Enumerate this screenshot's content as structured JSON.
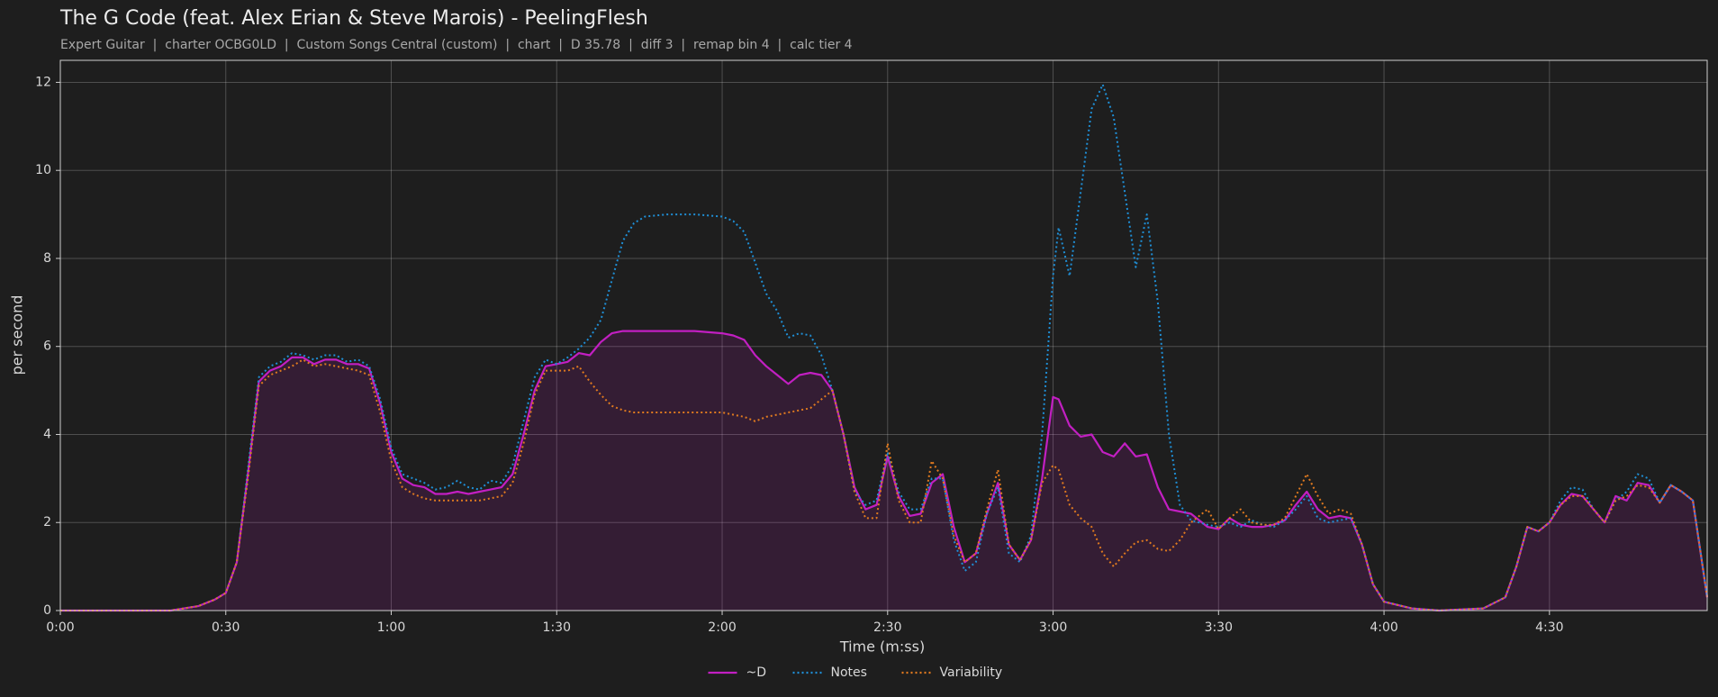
{
  "chart_data": {
    "type": "line",
    "title": "The G Code (feat. Alex Erian & Steve Marois) - PeelingFlesh",
    "subtitle": "Expert Guitar  |  charter OCBG0LD  |  Custom Songs Central (custom)  |  chart  |  D 35.78  |  diff 3  |  remap bin 4  |  calc tier 4",
    "xlabel": "Time (m:ss)",
    "ylabel": "per second",
    "xlim": [
      0,
      298.6
    ],
    "ylim": [
      0,
      12.5
    ],
    "xticks": [
      {
        "value": 0,
        "label": "0:00"
      },
      {
        "value": 30,
        "label": "0:30"
      },
      {
        "value": 60,
        "label": "1:00"
      },
      {
        "value": 90,
        "label": "1:30"
      },
      {
        "value": 120,
        "label": "2:00"
      },
      {
        "value": 150,
        "label": "2:30"
      },
      {
        "value": 180,
        "label": "3:00"
      },
      {
        "value": 210,
        "label": "3:30"
      },
      {
        "value": 240,
        "label": "4:00"
      },
      {
        "value": 270,
        "label": "4:30"
      }
    ],
    "yticks": [
      0,
      2,
      4,
      6,
      8,
      10,
      12
    ],
    "grid": true,
    "legend": "bottom",
    "x": [
      0,
      20,
      25,
      28,
      30,
      32,
      34,
      36,
      38,
      40,
      42,
      44,
      46,
      48,
      50,
      52,
      54,
      56,
      58,
      60,
      62,
      64,
      66,
      68,
      70,
      72,
      74,
      76,
      78,
      80,
      82,
      84,
      86,
      88,
      90,
      92,
      94,
      96,
      98,
      100,
      102,
      104,
      106,
      110,
      115,
      120,
      122,
      124,
      126,
      128,
      130,
      132,
      134,
      136,
      138,
      140,
      142,
      144,
      146,
      148,
      150,
      152,
      154,
      156,
      158,
      160,
      162,
      164,
      166,
      168,
      170,
      172,
      174,
      176,
      178,
      180,
      181,
      183,
      185,
      187,
      189,
      191,
      193,
      195,
      197,
      199,
      201,
      203,
      205,
      208,
      210,
      212,
      214,
      216,
      218,
      220,
      222,
      224,
      226,
      228,
      230,
      232,
      234,
      236,
      238,
      240,
      245,
      250,
      258,
      262,
      264,
      266,
      268,
      270,
      272,
      274,
      276,
      278,
      280,
      282,
      284,
      286,
      288,
      290,
      292,
      294,
      296,
      298.6
    ],
    "series": [
      {
        "name": "~D",
        "color": "#c21fc2",
        "style": "solid",
        "area": true,
        "values": [
          0,
          0,
          0.1,
          0.25,
          0.4,
          1.1,
          3.1,
          5.2,
          5.45,
          5.55,
          5.75,
          5.75,
          5.6,
          5.7,
          5.7,
          5.6,
          5.6,
          5.5,
          4.7,
          3.6,
          3.0,
          2.85,
          2.8,
          2.65,
          2.65,
          2.7,
          2.65,
          2.7,
          2.75,
          2.8,
          3.1,
          4.0,
          5.0,
          5.55,
          5.6,
          5.65,
          5.85,
          5.8,
          6.1,
          6.3,
          6.35,
          6.35,
          6.35,
          6.35,
          6.35,
          6.3,
          6.25,
          6.15,
          5.8,
          5.55,
          5.35,
          5.15,
          5.35,
          5.4,
          5.35,
          5.0,
          4.0,
          2.8,
          2.3,
          2.4,
          3.5,
          2.6,
          2.15,
          2.2,
          2.9,
          3.1,
          1.9,
          1.1,
          1.3,
          2.2,
          2.9,
          1.5,
          1.15,
          1.6,
          3.0,
          4.85,
          4.8,
          4.2,
          3.95,
          4.0,
          3.6,
          3.5,
          3.8,
          3.5,
          3.55,
          2.8,
          2.3,
          2.25,
          2.2,
          1.9,
          1.85,
          2.1,
          1.95,
          1.9,
          1.9,
          1.95,
          2.05,
          2.4,
          2.7,
          2.3,
          2.1,
          2.15,
          2.1,
          1.5,
          0.6,
          0.2,
          0.05,
          0,
          0.05,
          0.3,
          1.0,
          1.9,
          1.8,
          2.0,
          2.4,
          2.65,
          2.6,
          2.3,
          2.0,
          2.6,
          2.5,
          2.9,
          2.85,
          2.45,
          2.85,
          2.7,
          2.5,
          0.3
        ]
      },
      {
        "name": "Notes",
        "color": "#1f8fd6",
        "style": "dotted",
        "values": [
          0,
          0,
          0.1,
          0.25,
          0.4,
          1.1,
          3.2,
          5.3,
          5.55,
          5.65,
          5.85,
          5.8,
          5.7,
          5.8,
          5.8,
          5.65,
          5.7,
          5.55,
          4.8,
          3.7,
          3.1,
          3.0,
          2.9,
          2.75,
          2.8,
          2.95,
          2.8,
          2.75,
          2.95,
          2.9,
          3.3,
          4.3,
          5.3,
          5.7,
          5.6,
          5.75,
          5.95,
          6.2,
          6.6,
          7.5,
          8.4,
          8.8,
          8.95,
          9.0,
          9.0,
          8.95,
          8.85,
          8.6,
          7.9,
          7.2,
          6.8,
          6.2,
          6.3,
          6.25,
          5.8,
          5.0,
          4.0,
          2.7,
          2.4,
          2.5,
          3.6,
          2.7,
          2.3,
          2.3,
          3.0,
          3.0,
          1.6,
          0.9,
          1.1,
          2.2,
          2.8,
          1.3,
          1.1,
          1.7,
          4.0,
          7.6,
          8.7,
          7.6,
          9.5,
          11.4,
          11.95,
          11.2,
          9.5,
          7.8,
          9.0,
          7.0,
          4.0,
          2.4,
          2.05,
          1.95,
          1.9,
          2.0,
          1.9,
          2.05,
          1.95,
          1.9,
          2.05,
          2.3,
          2.6,
          2.1,
          2.0,
          2.05,
          2.1,
          1.5,
          0.6,
          0.2,
          0.05,
          0,
          0.05,
          0.3,
          1.0,
          1.9,
          1.8,
          2.0,
          2.5,
          2.8,
          2.75,
          2.3,
          2.0,
          2.5,
          2.7,
          3.1,
          3.0,
          2.45,
          2.85,
          2.7,
          2.5,
          0.3
        ]
      },
      {
        "name": "Variability",
        "color": "#e07a1f",
        "style": "dotted",
        "values": [
          0,
          0,
          0.1,
          0.25,
          0.4,
          1.1,
          3.0,
          5.1,
          5.35,
          5.45,
          5.55,
          5.7,
          5.55,
          5.6,
          5.55,
          5.5,
          5.45,
          5.35,
          4.5,
          3.4,
          2.8,
          2.65,
          2.55,
          2.5,
          2.5,
          2.5,
          2.5,
          2.5,
          2.55,
          2.6,
          2.9,
          3.8,
          4.9,
          5.45,
          5.45,
          5.45,
          5.55,
          5.2,
          4.9,
          4.65,
          4.55,
          4.5,
          4.5,
          4.5,
          4.5,
          4.5,
          4.45,
          4.4,
          4.3,
          4.4,
          4.45,
          4.5,
          4.55,
          4.6,
          4.8,
          5.0,
          4.0,
          2.7,
          2.1,
          2.1,
          3.8,
          2.5,
          2.0,
          2.0,
          3.4,
          3.0,
          1.7,
          1.1,
          1.3,
          2.3,
          3.2,
          1.5,
          1.15,
          1.6,
          2.9,
          3.3,
          3.2,
          2.4,
          2.1,
          1.9,
          1.3,
          1.0,
          1.3,
          1.55,
          1.6,
          1.4,
          1.35,
          1.6,
          2.0,
          2.3,
          1.85,
          2.1,
          2.3,
          2.0,
          1.95,
          1.95,
          2.1,
          2.6,
          3.1,
          2.6,
          2.2,
          2.3,
          2.2,
          1.5,
          0.6,
          0.2,
          0.05,
          0,
          0.05,
          0.3,
          1.0,
          1.9,
          1.8,
          2.0,
          2.4,
          2.6,
          2.6,
          2.3,
          2.0,
          2.5,
          2.6,
          2.85,
          2.8,
          2.45,
          2.85,
          2.7,
          2.5,
          0.3
        ]
      }
    ]
  }
}
